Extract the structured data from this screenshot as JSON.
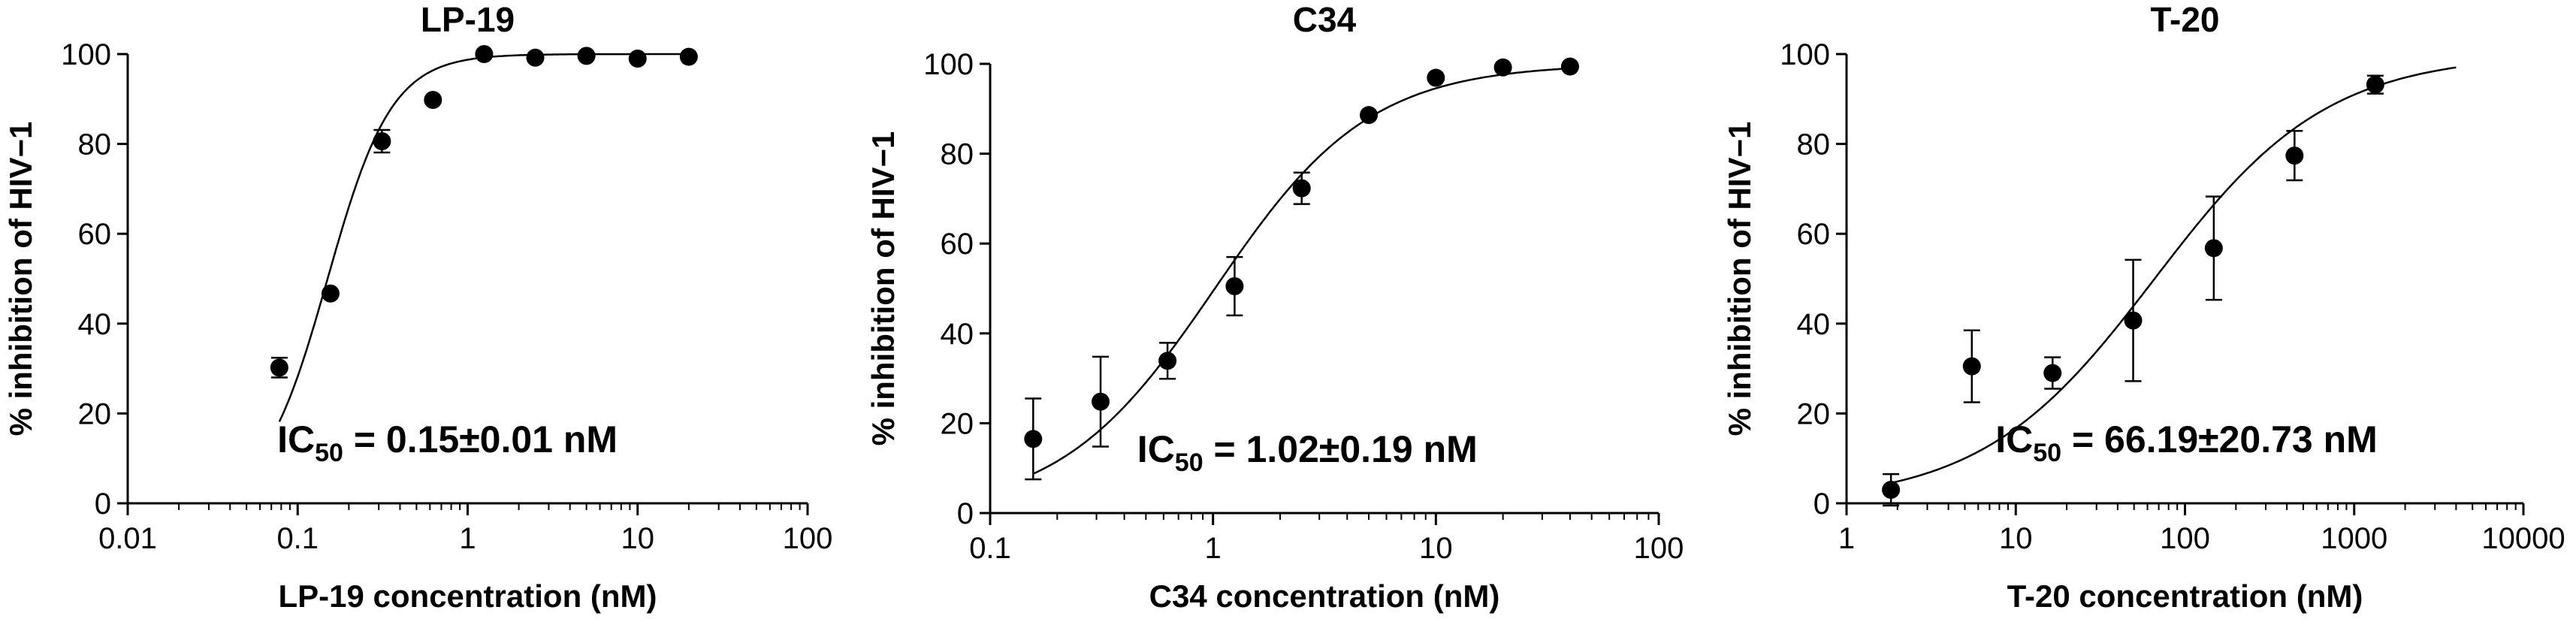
{
  "chart_data": [
    {
      "type": "scatter",
      "title": "LP-19",
      "xlabel": "LP-19 concentration  (nM)",
      "ylabel": "% inhibition of HIV−1",
      "xscale": "log",
      "xlim": [
        0.01,
        100
      ],
      "ylim": [
        0,
        100
      ],
      "xticks": [
        0.01,
        0.1,
        1,
        10,
        100
      ],
      "xtick_labels": [
        "0.01",
        "0.1",
        "1",
        "10",
        "100"
      ],
      "yticks": [
        0,
        20,
        40,
        60,
        80,
        100
      ],
      "ytick_labels": [
        "0",
        "20",
        "40",
        "60",
        "80",
        "100"
      ],
      "grid": false,
      "points": [
        {
          "x": 0.078,
          "y": 30.2,
          "err": 2.2
        },
        {
          "x": 0.156,
          "y": 46.7,
          "err": 0
        },
        {
          "x": 0.313,
          "y": 80.6,
          "err": 2.5
        },
        {
          "x": 0.625,
          "y": 89.8,
          "err": 0
        },
        {
          "x": 1.25,
          "y": 100,
          "err": 0
        },
        {
          "x": 2.5,
          "y": 99.2,
          "err": 0
        },
        {
          "x": 5,
          "y": 99.6,
          "err": 0
        },
        {
          "x": 10,
          "y": 99.0,
          "err": 0
        },
        {
          "x": 20,
          "y": 99.4,
          "err": 0
        }
      ],
      "fit": {
        "ic50": 0.15,
        "hill": 2.3,
        "bottom": 0,
        "top": 100,
        "x_start": 0.078,
        "x_end": 20
      },
      "annotation": {
        "prefix": "IC",
        "subscript": "50",
        "text": " = 0.15±0.01 nM"
      }
    },
    {
      "type": "scatter",
      "title": "C34",
      "xlabel": "C34 concentration  (nM)",
      "ylabel": "% inhibition of HIV−1",
      "xscale": "log",
      "xlim": [
        0.1,
        100
      ],
      "ylim": [
        0,
        100
      ],
      "xticks": [
        0.1,
        1,
        10,
        100
      ],
      "xtick_labels": [
        "0.1",
        "1",
        "10",
        "100"
      ],
      "yticks": [
        0,
        20,
        40,
        60,
        80,
        100
      ],
      "ytick_labels": [
        "0",
        "20",
        "40",
        "60",
        "80",
        "100"
      ],
      "grid": false,
      "points": [
        {
          "x": 0.156,
          "y": 16.5,
          "err": 9.0
        },
        {
          "x": 0.313,
          "y": 24.8,
          "err": 10.0
        },
        {
          "x": 0.625,
          "y": 33.9,
          "err": 4.0
        },
        {
          "x": 1.25,
          "y": 50.5,
          "err": 6.5
        },
        {
          "x": 2.5,
          "y": 72.3,
          "err": 3.5
        },
        {
          "x": 5,
          "y": 88.6,
          "err": 0
        },
        {
          "x": 10,
          "y": 96.9,
          "err": 0
        },
        {
          "x": 20,
          "y": 99.2,
          "err": 0
        },
        {
          "x": 40,
          "y": 99.4,
          "err": 0
        }
      ],
      "fit": {
        "ic50": 1.02,
        "hill": 1.25,
        "bottom": 0,
        "top": 100,
        "x_start": 0.156,
        "x_end": 40
      },
      "annotation": {
        "prefix": "IC",
        "subscript": "50",
        "text": " = 1.02±0.19 nM"
      }
    },
    {
      "type": "scatter",
      "title": "T-20",
      "xlabel": "T-20 concentration  (nM)",
      "ylabel": "% inhibition of HIV−1",
      "xscale": "log",
      "xlim": [
        1,
        10000
      ],
      "ylim": [
        0,
        100
      ],
      "xticks": [
        1,
        10,
        100,
        1000,
        10000
      ],
      "xtick_labels": [
        "1",
        "10",
        "100",
        "1000",
        "10000"
      ],
      "yticks": [
        0,
        20,
        40,
        60,
        80,
        100
      ],
      "ytick_labels": [
        "0",
        "20",
        "40",
        "60",
        "80",
        "100"
      ],
      "grid": false,
      "points": [
        {
          "x": 1.83,
          "y": 3.0,
          "err": 3.5
        },
        {
          "x": 5.5,
          "y": 30.5,
          "err": 8.0
        },
        {
          "x": 16.5,
          "y": 29.0,
          "err": 3.5
        },
        {
          "x": 49.4,
          "y": 40.7,
          "err": 13.5
        },
        {
          "x": 148,
          "y": 56.8,
          "err": 11.5
        },
        {
          "x": 444,
          "y": 77.4,
          "err": 5.5
        },
        {
          "x": 1333,
          "y": 93.2,
          "err": 2.0
        }
      ],
      "fit": {
        "ic50": 66.19,
        "hill": 0.85,
        "bottom": 0,
        "top": 100,
        "x_start": 1.83,
        "x_end": 4000
      },
      "annotation": {
        "prefix": "IC",
        "subscript": "50",
        "text": " = 66.19±20.73 nM"
      }
    }
  ]
}
